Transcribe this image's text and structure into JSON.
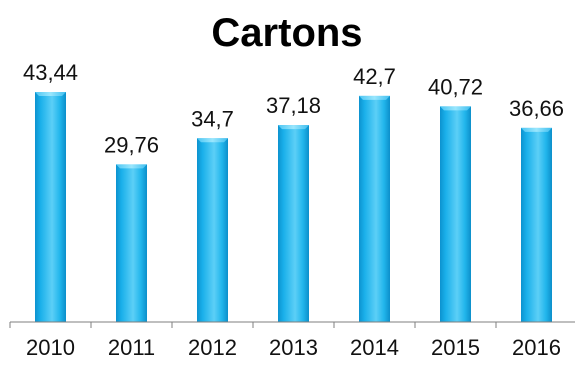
{
  "chart_data": {
    "type": "bar",
    "title": "Cartons",
    "categories": [
      "2010",
      "2011",
      "2012",
      "2013",
      "2014",
      "2015",
      "2016"
    ],
    "values": [
      43.44,
      29.76,
      34.7,
      37.18,
      42.7,
      40.72,
      36.66
    ],
    "value_labels": [
      "43,44",
      "29,76",
      "34,7",
      "37,18",
      "42,7",
      "40,72",
      "36,66"
    ],
    "xlabel": "",
    "ylabel": "",
    "ylim": [
      0,
      43.44
    ],
    "grid": false,
    "legend": "none",
    "colors": {
      "bar_fill": "#1ab0ea",
      "bar_highlight": "#7fdcfb",
      "bar_edge": "#0b8cc4",
      "axis": "#7f7f7f"
    }
  }
}
